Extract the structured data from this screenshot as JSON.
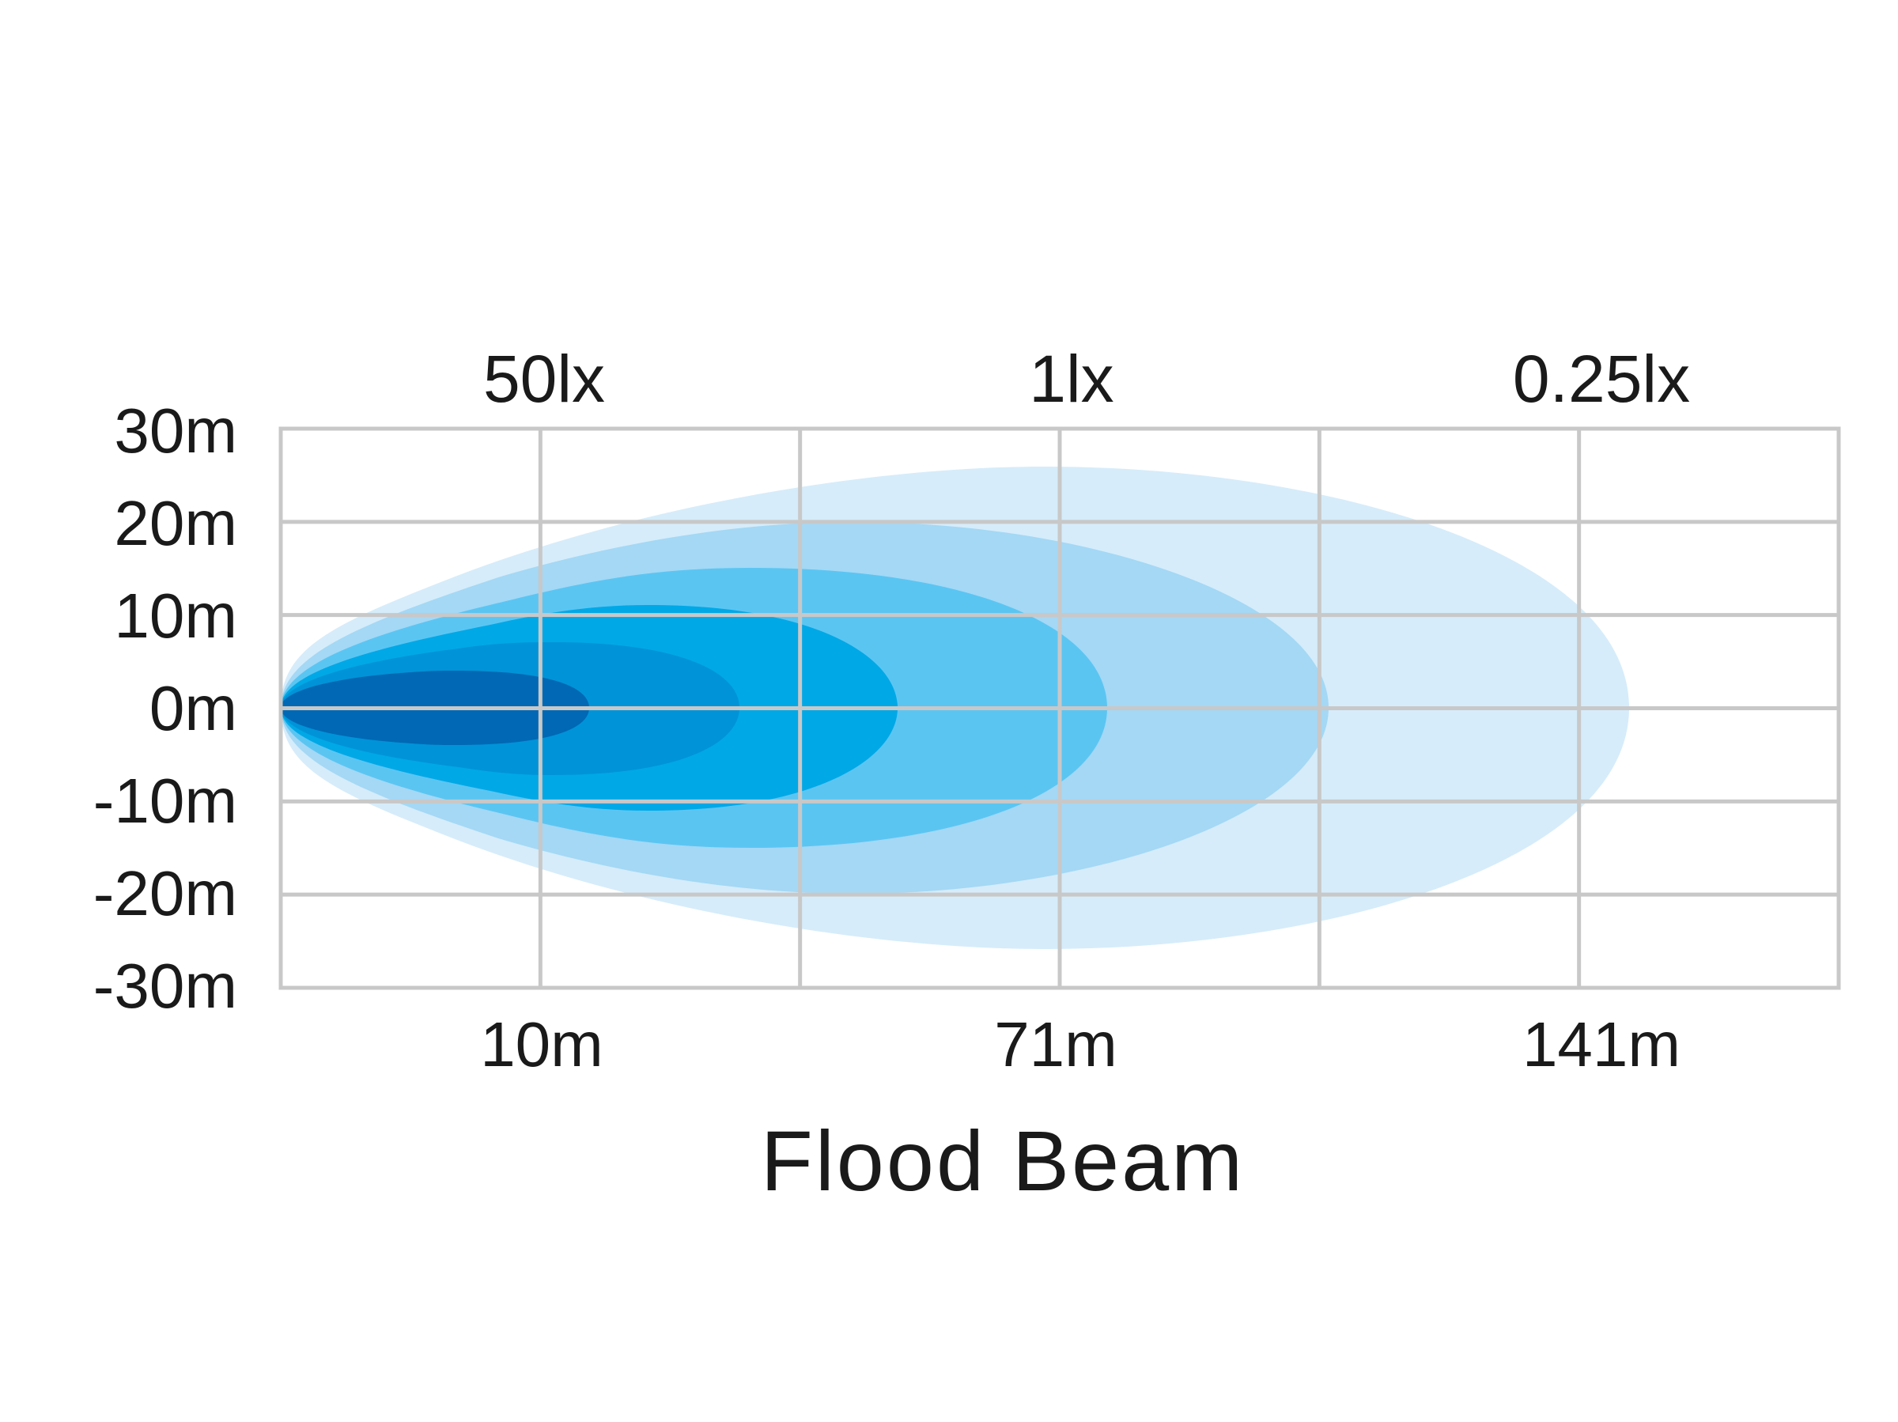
{
  "chart_data": {
    "type": "area",
    "title": "Flood Beam",
    "xlabel": "",
    "ylabel": "",
    "y_tick_labels": [
      "30m",
      "20m",
      "10m",
      "0m",
      "-10m",
      "-20m",
      "-30m"
    ],
    "y_ticks": [
      30,
      20,
      10,
      0,
      -10,
      -20,
      -30
    ],
    "ylim": [
      -30,
      30
    ],
    "x_tick_labels": [
      "10m",
      "71m",
      "141m"
    ],
    "lux_labels": [
      "50lx",
      "1lx",
      "0.25lx"
    ],
    "grid": true,
    "colors": {
      "zone1": "#d6ecfa",
      "zone2": "#a4d8f5",
      "zone3": "#5bc5f2",
      "zone4": "#00a8e6",
      "zone5": "#0093d8",
      "zone6": "#0068b4",
      "grid": "#c8c8c8",
      "text": "#1a1a1a"
    }
  }
}
